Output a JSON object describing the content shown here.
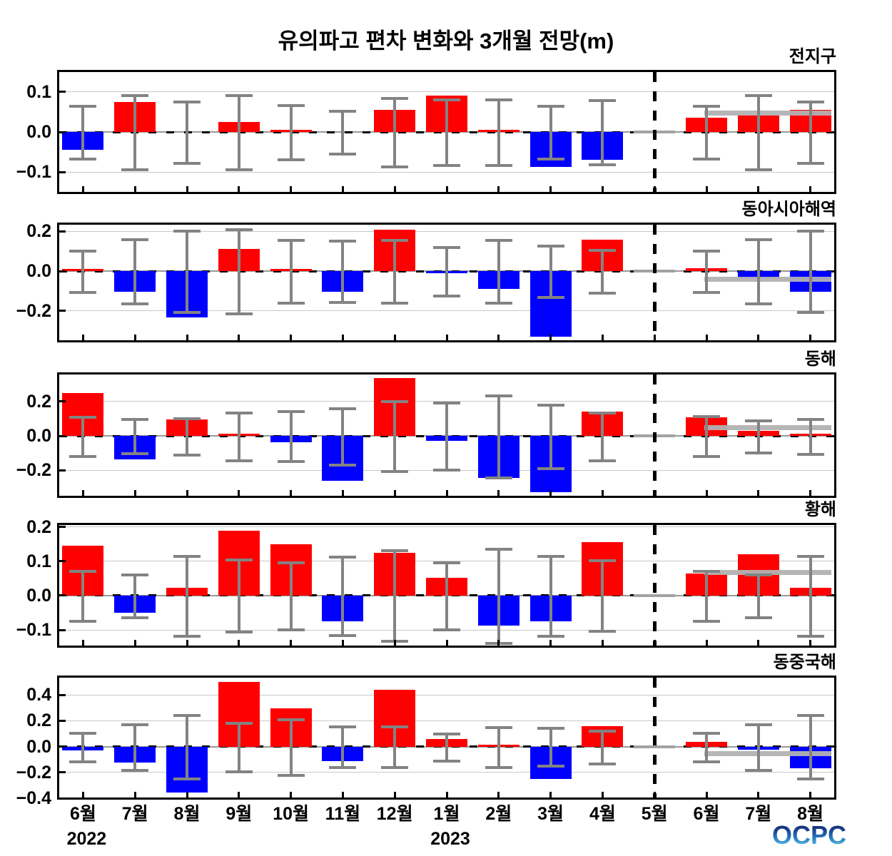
{
  "title": "유의파고 편차 변화와 3개월 전망(m)",
  "logo": "OCPC",
  "x_axis": {
    "months": [
      "6월",
      "7월",
      "8월",
      "9월",
      "10월",
      "11월",
      "12월",
      "1월",
      "2월",
      "3월",
      "4월",
      "5월",
      "6월",
      "7월",
      "8월"
    ],
    "years": [
      {
        "label": "2022",
        "under_month_index": 0
      },
      {
        "label": "2023",
        "under_month_index": 7
      }
    ]
  },
  "forecast_divider_month_index": 11,
  "forecast_month_indices": [
    12,
    13,
    14
  ],
  "colors": {
    "bar_positive": "#ff0000",
    "bar_negative": "#0000ff",
    "error_bar": "#838383",
    "forecast_band": "#b2b2b2",
    "zero_month_mark": "#a3a3a3",
    "gridline": "#c9c9c9",
    "zero_line_gray": "#999999",
    "axis": "#000000"
  },
  "chart_data": [
    {
      "type": "bar",
      "region": "전지구",
      "yticks": [
        0.1,
        0.0,
        -0.1
      ],
      "ylim": [
        -0.155,
        0.155
      ],
      "values": [
        -0.045,
        0.075,
        0,
        0.025,
        0.002,
        0,
        0.055,
        0.09,
        0.006,
        -0.088,
        -0.07,
        0,
        0.035,
        0.042,
        0.055
      ],
      "errors": [
        0.065,
        0.09,
        0.075,
        0.09,
        0.066,
        0.052,
        0.083,
        0.08,
        0.08,
        0.065,
        0.078,
        null,
        0.065,
        0.09,
        0.075
      ],
      "colors": [
        "b",
        "r",
        null,
        "r",
        "r",
        null,
        "r",
        "r",
        "r",
        "b",
        "b",
        "g",
        "r",
        "r",
        "r"
      ],
      "forecast_band": 0.048
    },
    {
      "type": "bar",
      "region": "동아시아해역",
      "yticks": [
        0.2,
        0.0,
        -0.2
      ],
      "ylim": [
        -0.36,
        0.245
      ],
      "values": [
        0.004,
        -0.105,
        -0.235,
        0.11,
        0.006,
        -0.105,
        0.21,
        -0.004,
        -0.09,
        -0.33,
        0.16,
        0,
        0.015,
        -0.035,
        -0.105
      ],
      "errors": [
        0.1,
        0.16,
        0.2,
        0.21,
        0.155,
        0.15,
        0.155,
        0.12,
        0.155,
        0.125,
        0.105,
        null,
        0.1,
        0.16,
        0.2
      ],
      "colors": [
        "r",
        "b",
        "b",
        "r",
        "r",
        "b",
        "r",
        "b",
        "b",
        "b",
        "r",
        "g",
        "r",
        "b",
        "b"
      ],
      "forecast_band": -0.042
    },
    {
      "type": "bar",
      "region": "동해",
      "yticks": [
        0.2,
        0.0,
        -0.2
      ],
      "ylim": [
        -0.36,
        0.37
      ],
      "values": [
        0.25,
        -0.135,
        0.095,
        0.01,
        -0.035,
        -0.26,
        0.335,
        -0.03,
        -0.245,
        -0.325,
        0.14,
        0,
        0.11,
        0.03,
        0.006
      ],
      "errors": [
        0.11,
        0.095,
        0.102,
        0.135,
        0.14,
        0.16,
        0.2,
        0.19,
        0.235,
        0.18,
        0.135,
        null,
        0.112,
        0.09,
        0.098
      ],
      "colors": [
        "r",
        "b",
        "r",
        "r",
        "b",
        "b",
        "r",
        "b",
        "b",
        "b",
        "r",
        "g",
        "r",
        "r",
        "r"
      ],
      "forecast_band": 0.05
    },
    {
      "type": "bar",
      "region": "황해",
      "yticks": [
        0.2,
        0.1,
        0.0,
        -0.1
      ],
      "ylim": [
        -0.152,
        0.212
      ],
      "values": [
        0.145,
        -0.05,
        0.022,
        0.19,
        0.15,
        -0.075,
        0.125,
        0.052,
        -0.088,
        -0.075,
        0.155,
        0,
        0.065,
        0.12,
        0.022
      ],
      "errors": [
        0.07,
        0.061,
        0.115,
        0.103,
        0.095,
        0.113,
        0.13,
        0.096,
        0.135,
        0.115,
        0.101,
        null,
        0.07,
        0.061,
        0.115
      ],
      "colors": [
        "r",
        "b",
        "r",
        "r",
        "r",
        "b",
        "r",
        "r",
        "b",
        "b",
        "r",
        "g",
        "r",
        "r",
        "r"
      ],
      "forecast_band": 0.068
    },
    {
      "type": "bar",
      "region": "동중국해",
      "yticks": [
        0.4,
        0.2,
        0.0,
        -0.2,
        -0.4
      ],
      "ylim": [
        -0.41,
        0.55
      ],
      "values": [
        -0.03,
        -0.125,
        -0.355,
        0.5,
        0.295,
        -0.11,
        0.44,
        0.058,
        0.012,
        -0.252,
        0.16,
        0,
        0.038,
        -0.025,
        -0.168
      ],
      "errors": [
        0.105,
        0.17,
        0.24,
        0.182,
        0.21,
        0.152,
        0.153,
        0.099,
        0.15,
        0.14,
        0.121,
        null,
        0.105,
        0.17,
        0.24
      ],
      "colors": [
        "b",
        "b",
        "b",
        "r",
        "r",
        "b",
        "r",
        "r",
        "r",
        "b",
        "r",
        "g",
        "r",
        "b",
        "b"
      ],
      "forecast_band": -0.056
    }
  ]
}
